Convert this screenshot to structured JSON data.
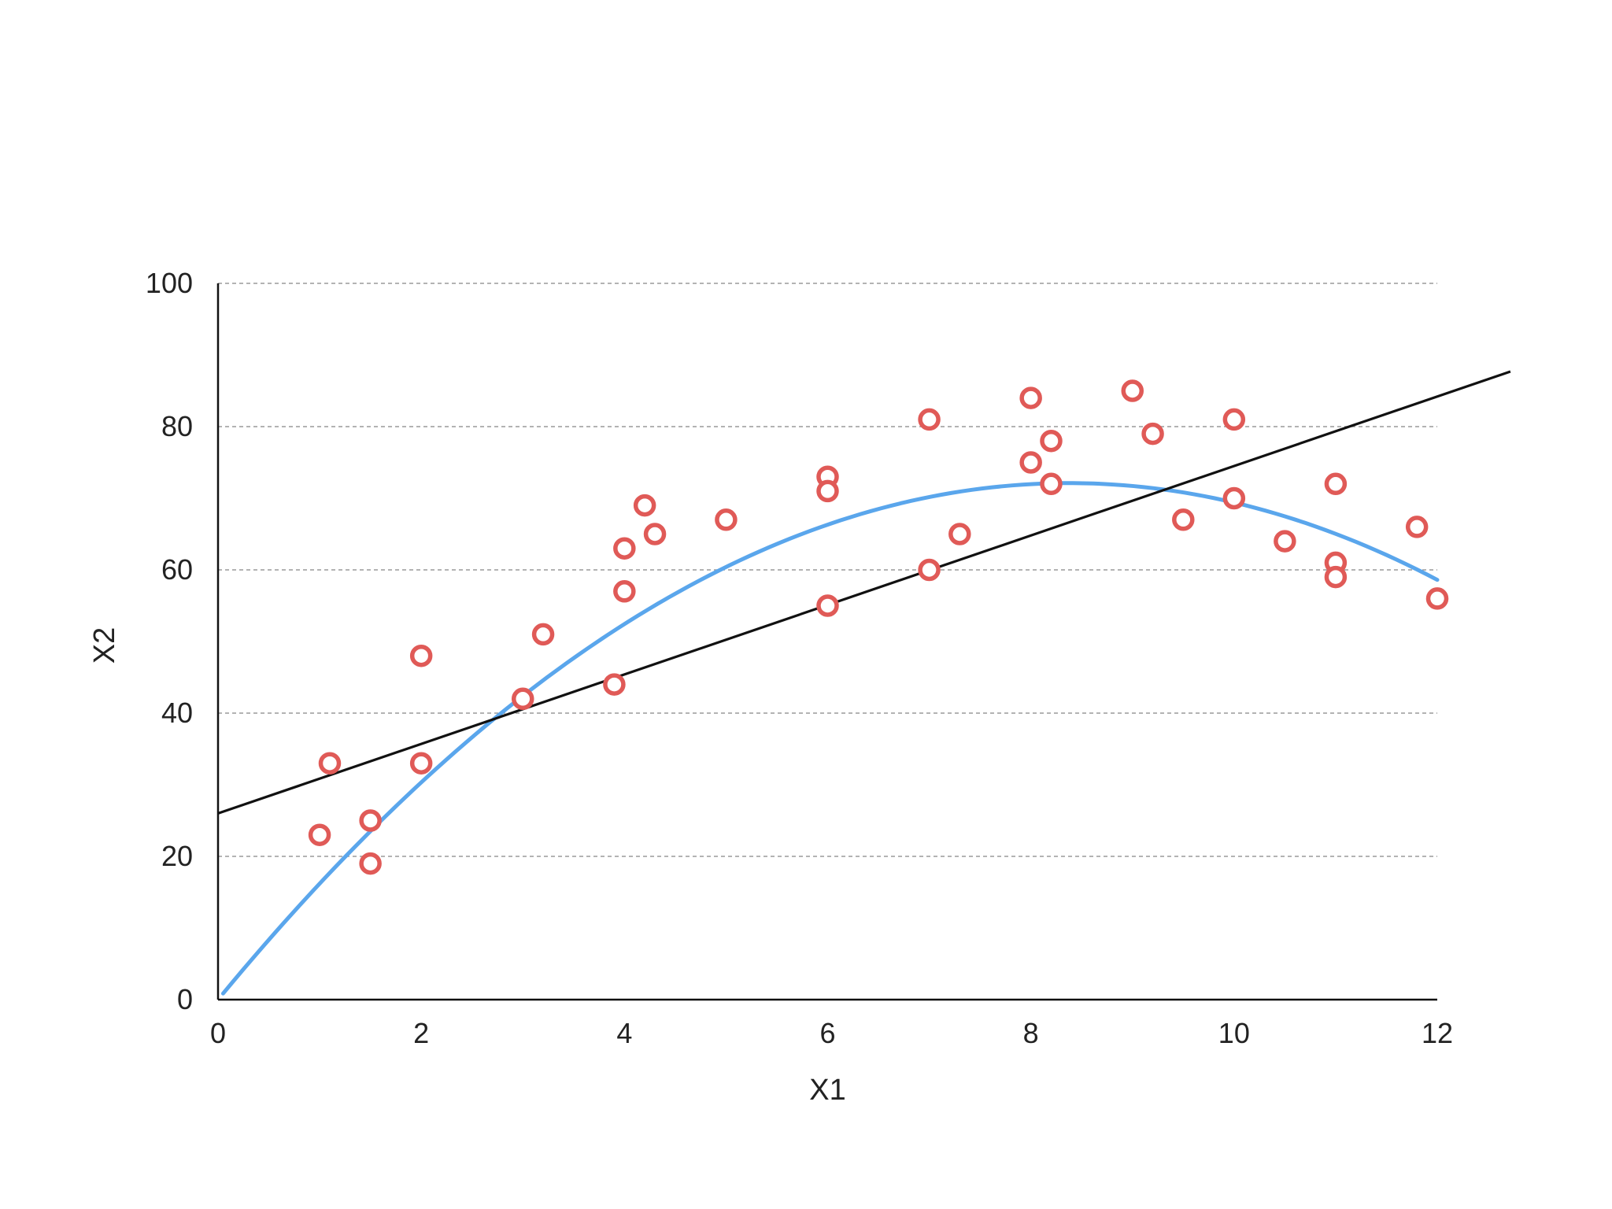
{
  "chart_data": {
    "type": "scatter",
    "title": "",
    "xlabel": "X1",
    "ylabel": "X2",
    "xlim": [
      0,
      12
    ],
    "ylim": [
      0,
      100
    ],
    "x_ticks": [
      "0",
      "2",
      "4",
      "6",
      "8",
      "10",
      "12"
    ],
    "y_ticks": [
      "0",
      "20",
      "40",
      "60",
      "80",
      "100"
    ],
    "grid": "horizontal dashed",
    "legend": "none",
    "series": [
      {
        "kind": "points",
        "marker": "open circle",
        "color": "#e05a57",
        "points": [
          [
            1.0,
            23
          ],
          [
            1.1,
            33
          ],
          [
            1.5,
            25
          ],
          [
            1.5,
            19
          ],
          [
            2.0,
            48
          ],
          [
            2.0,
            33
          ],
          [
            3.0,
            42
          ],
          [
            3.2,
            51
          ],
          [
            3.9,
            44
          ],
          [
            4.0,
            63
          ],
          [
            4.0,
            57
          ],
          [
            4.2,
            69
          ],
          [
            4.3,
            65
          ],
          [
            5.0,
            67
          ],
          [
            6.0,
            73
          ],
          [
            6.0,
            71
          ],
          [
            6.0,
            55
          ],
          [
            7.0,
            81
          ],
          [
            7.0,
            60
          ],
          [
            7.3,
            65
          ],
          [
            8.0,
            84
          ],
          [
            8.0,
            75
          ],
          [
            8.2,
            78
          ],
          [
            8.2,
            72
          ],
          [
            9.0,
            85
          ],
          [
            9.2,
            79
          ],
          [
            9.5,
            67
          ],
          [
            10.0,
            81
          ],
          [
            10.0,
            70
          ],
          [
            10.5,
            64
          ],
          [
            11.0,
            72
          ],
          [
            11.0,
            61
          ],
          [
            11.0,
            59
          ],
          [
            11.8,
            66
          ],
          [
            12.0,
            56
          ]
        ]
      },
      {
        "kind": "linear fit",
        "color": "#111111",
        "intercept": 26,
        "slope": 4.85,
        "x_range": [
          0,
          12.72
        ]
      },
      {
        "kind": "quadratic fit",
        "color": "#5aa6ec",
        "coefficients": {
          "a": -1.028,
          "b": 17.22,
          "c": 0
        },
        "x_range": [
          0.05,
          12.0
        ]
      }
    ]
  }
}
